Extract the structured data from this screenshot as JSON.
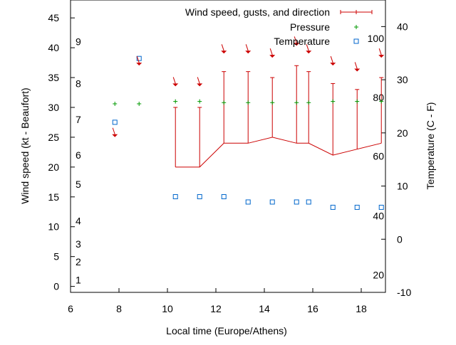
{
  "chart_data": {
    "type": "line",
    "xlabel": "Local time (Europe/Athens)",
    "ylabel": "Wind speed (kt - Beaufort)",
    "y2label": "Temperature (C - F)",
    "xlim": [
      6,
      19
    ],
    "ylim": [
      -1,
      48
    ],
    "y2lim": [
      -10,
      45
    ],
    "x_ticks": [
      6,
      8,
      10,
      12,
      14,
      16,
      18
    ],
    "y_ticks": [
      0,
      5,
      10,
      15,
      20,
      25,
      30,
      35,
      40,
      45
    ],
    "y2_ticks": [
      -10,
      0,
      10,
      20,
      30,
      40
    ],
    "x_tick_labels": [
      "6",
      "8",
      "10",
      "12",
      "14",
      "16",
      "18"
    ],
    "y_tick_labels": [
      "0",
      "5",
      "10",
      "15",
      "20",
      "25",
      "30",
      "35",
      "40",
      "45"
    ],
    "y2_tick_labels": [
      "-10",
      "0",
      "10",
      "20",
      "30",
      "40"
    ],
    "beaufort_labels": [
      {
        "text": "1",
        "y": 1.1
      },
      {
        "text": "2",
        "y": 4.1
      },
      {
        "text": "3",
        "y": 7.1
      },
      {
        "text": "4",
        "y": 11.0
      },
      {
        "text": "5",
        "y": 17.1
      },
      {
        "text": "6",
        "y": 22.0
      },
      {
        "text": "7",
        "y": 28.0
      },
      {
        "text": "8",
        "y": 34.0
      },
      {
        "text": "9",
        "y": 41.0
      }
    ],
    "fahrenheit_labels": [
      {
        "text": "20",
        "y2": -6.7
      },
      {
        "text": "40",
        "y2": 4.4
      },
      {
        "text": "60",
        "y2": 15.6
      },
      {
        "text": "80",
        "y2": 26.7
      },
      {
        "text": "100",
        "y2": 37.8
      }
    ],
    "legend_position": "top-right",
    "series": [
      {
        "name": "Wind speed, gusts, and direction",
        "color": "#cc0000",
        "points": [
          {
            "x": 10.33,
            "y": 20,
            "gust": 30
          },
          {
            "x": 11.33,
            "y": 20,
            "gust": 30
          },
          {
            "x": 12.33,
            "y": 24,
            "gust": 36
          },
          {
            "x": 13.33,
            "y": 24,
            "gust": 36
          },
          {
            "x": 14.33,
            "y": 25,
            "gust": 35
          },
          {
            "x": 15.33,
            "y": 24,
            "gust": 37
          },
          {
            "x": 15.83,
            "y": 24,
            "gust": 36
          },
          {
            "x": 16.83,
            "y": 22,
            "gust": 34
          },
          {
            "x": 17.83,
            "y": 23,
            "gust": 33
          },
          {
            "x": 18.83,
            "y": 24,
            "gust": 35
          }
        ]
      },
      {
        "name": "Pressure",
        "color": "#009900",
        "points": [
          {
            "x": 7.83,
            "y": 30.6
          },
          {
            "x": 8.83,
            "y": 30.6
          },
          {
            "x": 10.33,
            "y": 31.0
          },
          {
            "x": 11.33,
            "y": 31.0
          },
          {
            "x": 12.33,
            "y": 30.8
          },
          {
            "x": 13.33,
            "y": 30.8
          },
          {
            "x": 14.33,
            "y": 30.8
          },
          {
            "x": 15.33,
            "y": 30.8
          },
          {
            "x": 15.83,
            "y": 30.8
          },
          {
            "x": 16.83,
            "y": 31.0
          },
          {
            "x": 17.83,
            "y": 31.0
          },
          {
            "x": 18.83,
            "y": 31.0
          }
        ]
      },
      {
        "name": "Temperature",
        "color": "#0066cc",
        "axis": "y2",
        "points": [
          {
            "x": 7.83,
            "y2": 22
          },
          {
            "x": 8.83,
            "y2": 34
          },
          {
            "x": 10.33,
            "y2": 8
          },
          {
            "x": 11.33,
            "y2": 8
          },
          {
            "x": 12.33,
            "y2": 8
          },
          {
            "x": 13.33,
            "y2": 7
          },
          {
            "x": 14.33,
            "y2": 7
          },
          {
            "x": 15.33,
            "y2": 7
          },
          {
            "x": 15.83,
            "y2": 7
          },
          {
            "x": 16.83,
            "y2": 6
          },
          {
            "x": 17.83,
            "y2": 6
          },
          {
            "x": 18.83,
            "y2": 6
          }
        ]
      }
    ],
    "direction_arrows": [
      {
        "x": 7.83,
        "y": 25.5
      },
      {
        "x": 8.83,
        "y": 37.5
      },
      {
        "x": 10.33,
        "y": 34
      },
      {
        "x": 11.33,
        "y": 34
      },
      {
        "x": 12.33,
        "y": 39.5
      },
      {
        "x": 13.33,
        "y": 39.5
      },
      {
        "x": 14.33,
        "y": 38.8
      },
      {
        "x": 15.33,
        "y": 40.8
      },
      {
        "x": 15.83,
        "y": 39.5
      },
      {
        "x": 16.83,
        "y": 37.5
      },
      {
        "x": 17.83,
        "y": 36.5
      },
      {
        "x": 18.83,
        "y": 38.8
      }
    ]
  }
}
